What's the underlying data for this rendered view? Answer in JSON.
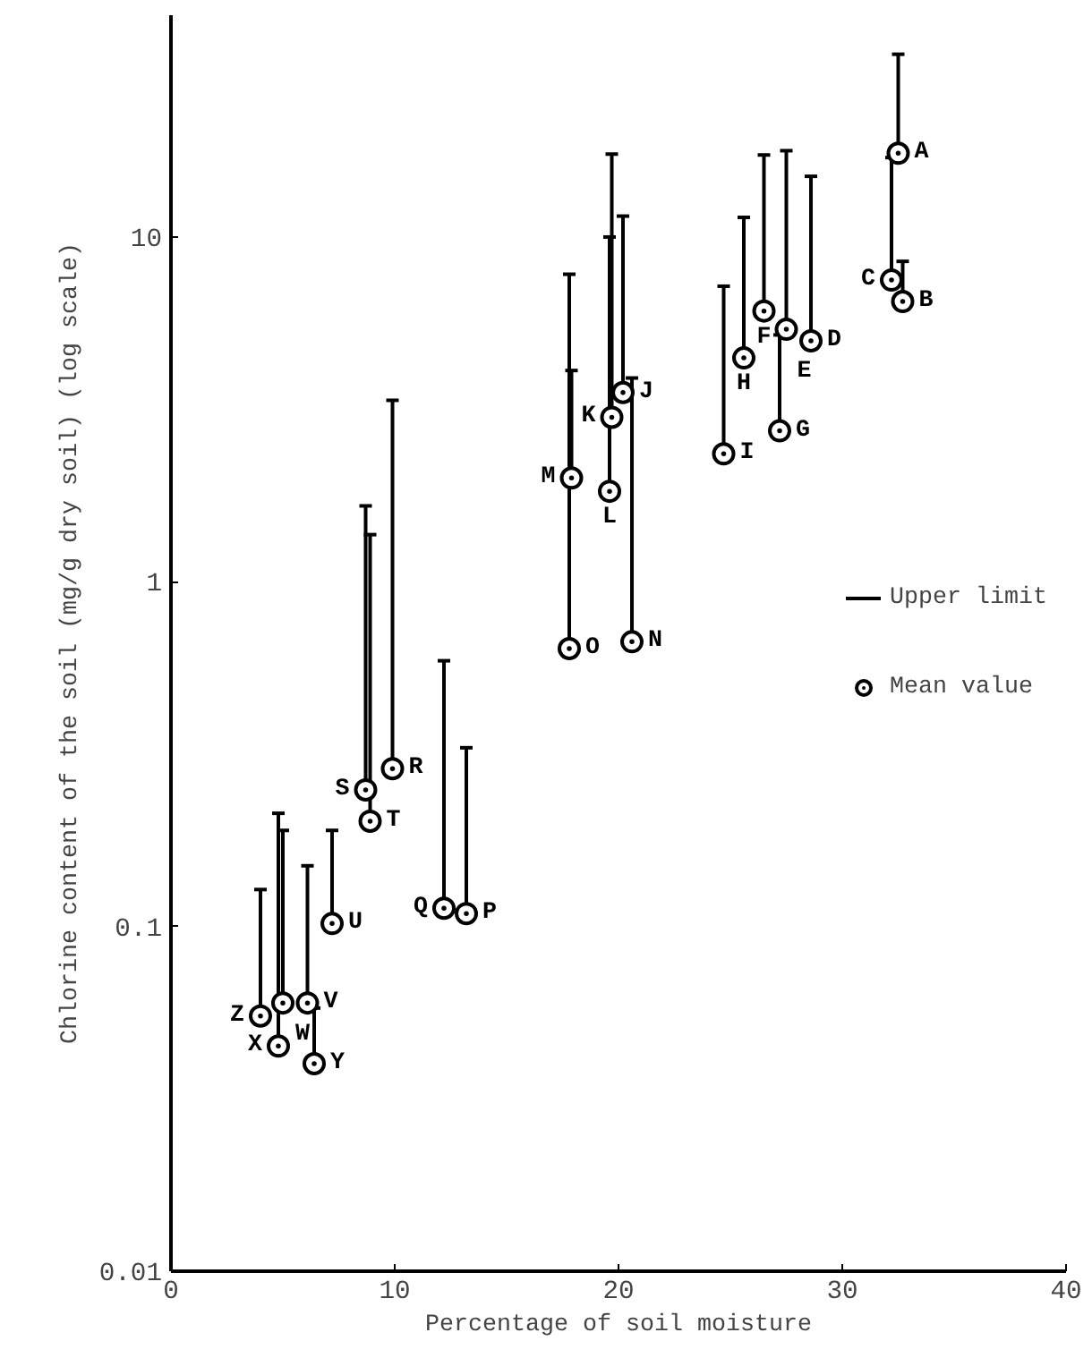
{
  "chart_data": {
    "type": "scatter",
    "xlabel": "Percentage of soil moisture",
    "ylabel": "Chlorine content of the soil (mg/g dry soil) (log scale)",
    "log": "y",
    "grid": false,
    "legend": "right",
    "marker": "circle",
    "xlim": [
      0,
      40
    ],
    "xticks": [
      0,
      10,
      20,
      30,
      40
    ],
    "ylim": [
      0.01,
      44
    ],
    "yticks": [
      0.01,
      0.1,
      1,
      10
    ],
    "series": [
      {
        "name": "Mean value",
        "color": "#000000",
        "x": [
          32.5,
          32.7,
          32.2,
          28.6,
          27.5,
          26.5,
          27.2,
          25.6,
          24.7,
          20.2,
          19.7,
          19.6,
          17.9,
          20.6,
          17.8,
          13.2,
          12.2,
          9.9,
          8.7,
          8.9,
          7.2,
          6.1,
          5.0,
          4.8,
          6.4,
          4.0
        ],
        "values": [
          17.5,
          6.5,
          7.5,
          5.0,
          5.4,
          6.1,
          2.74,
          4.46,
          2.35,
          3.54,
          3.0,
          1.83,
          2.0,
          0.67,
          0.64,
          0.109,
          0.113,
          0.287,
          0.249,
          0.202,
          0.102,
          0.06,
          0.06,
          0.045,
          0.04,
          0.055
        ],
        "errors": [
          [
            17.5,
            33.9
          ],
          [
            6.5,
            8.5
          ],
          [
            7.5,
            17
          ],
          [
            5.0,
            15.0
          ],
          [
            5.4,
            17.8
          ],
          [
            6.1,
            17.3
          ],
          [
            2.74,
            5.2
          ],
          [
            4.46,
            11.4
          ],
          [
            2.35,
            7.2
          ],
          [
            3.54,
            11.5
          ],
          [
            3.0,
            17.4
          ],
          [
            1.83,
            10
          ],
          [
            2.0,
            4.1
          ],
          [
            0.67,
            3.9
          ],
          [
            0.64,
            7.8
          ],
          [
            0.109,
            0.33
          ],
          [
            0.113,
            0.59
          ],
          [
            0.287,
            3.36
          ],
          [
            0.249,
            1.66
          ],
          [
            0.202,
            1.37
          ],
          [
            0.102,
            0.19
          ],
          [
            0.06,
            0.15
          ],
          [
            0.06,
            0.19
          ],
          [
            0.045,
            0.213
          ],
          [
            0.04,
            0.058
          ],
          [
            0.055,
            0.128
          ]
        ]
      }
    ],
    "annotations": [
      "Upper limit",
      {
        "text": "A",
        "x": 32.5,
        "y": 17.5
      },
      {
        "text": "B",
        "x": 32.7,
        "y": 6.5
      },
      {
        "text": "C",
        "x": 32.2,
        "y": 7.5
      },
      {
        "text": "D",
        "x": 28.6,
        "y": 5.0
      },
      {
        "text": "E",
        "x": 27.5,
        "y": 5.4
      },
      {
        "text": "F",
        "x": 26.5,
        "y": 6.1
      },
      {
        "text": "G",
        "x": 27.2,
        "y": 2.74
      },
      {
        "text": "H",
        "x": 25.6,
        "y": 4.46
      },
      {
        "text": "I",
        "x": 24.7,
        "y": 2.35
      },
      {
        "text": "J",
        "x": 20.2,
        "y": 3.54
      },
      {
        "text": "K",
        "x": 19.7,
        "y": 3.0
      },
      {
        "text": "L",
        "x": 19.6,
        "y": 1.83
      },
      {
        "text": "M",
        "x": 17.9,
        "y": 2.0
      },
      {
        "text": "N",
        "x": 20.6,
        "y": 0.67
      },
      {
        "text": "O",
        "x": 17.8,
        "y": 0.64
      },
      {
        "text": "P",
        "x": 13.2,
        "y": 0.109
      },
      {
        "text": "Q",
        "x": 12.2,
        "y": 0.113
      },
      {
        "text": "R",
        "x": 9.9,
        "y": 0.287
      },
      {
        "text": "S",
        "x": 8.7,
        "y": 0.249
      },
      {
        "text": "T",
        "x": 8.9,
        "y": 0.202
      },
      {
        "text": "U",
        "x": 7.2,
        "y": 0.102
      },
      {
        "text": "V",
        "x": 6.1,
        "y": 0.06
      },
      {
        "text": "W",
        "x": 5.0,
        "y": 0.06
      },
      {
        "text": "X",
        "x": 4.8,
        "y": 0.045
      },
      {
        "text": "Y",
        "x": 6.4,
        "y": 0.04
      },
      {
        "text": "Z",
        "x": 4.0,
        "y": 0.055
      }
    ]
  }
}
